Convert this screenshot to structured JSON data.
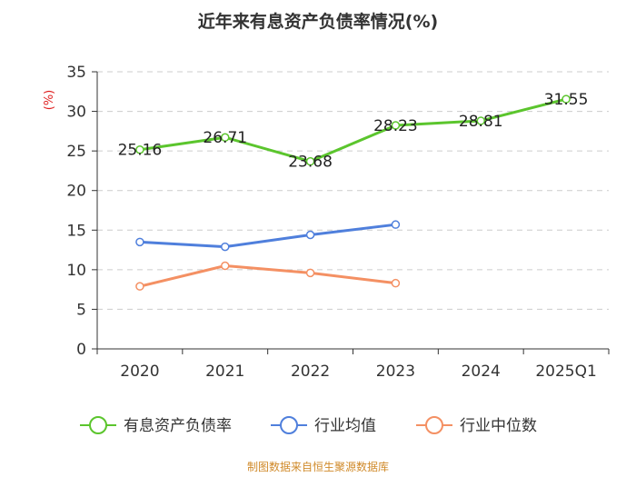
{
  "chart_data": {
    "type": "line",
    "title": "近年来有息资产负债率情况(%)",
    "ylabel": "(%)",
    "xlabel": "",
    "categories": [
      "2020",
      "2021",
      "2022",
      "2023",
      "2024",
      "2025Q1"
    ],
    "ylim": [
      0,
      35
    ],
    "yticks": [
      0,
      5,
      10,
      15,
      20,
      25,
      30,
      35
    ],
    "grid": true,
    "legend_position": "bottom",
    "series": [
      {
        "name": "有息资产负债率",
        "color": "#5bc52d",
        "values": [
          25.16,
          26.71,
          23.68,
          28.23,
          28.81,
          31.55
        ],
        "labels": [
          "25.16",
          "26.71",
          "23.68",
          "28.23",
          "28.81",
          "31.55"
        ]
      },
      {
        "name": "行业均值",
        "color": "#4f7fdc",
        "values": [
          13.5,
          12.9,
          14.4,
          15.7,
          null,
          null
        ]
      },
      {
        "name": "行业中位数",
        "color": "#f49063",
        "values": [
          7.9,
          10.5,
          9.6,
          8.3,
          null,
          null
        ]
      }
    ],
    "source": "制图数据来自恒生聚源数据库"
  }
}
